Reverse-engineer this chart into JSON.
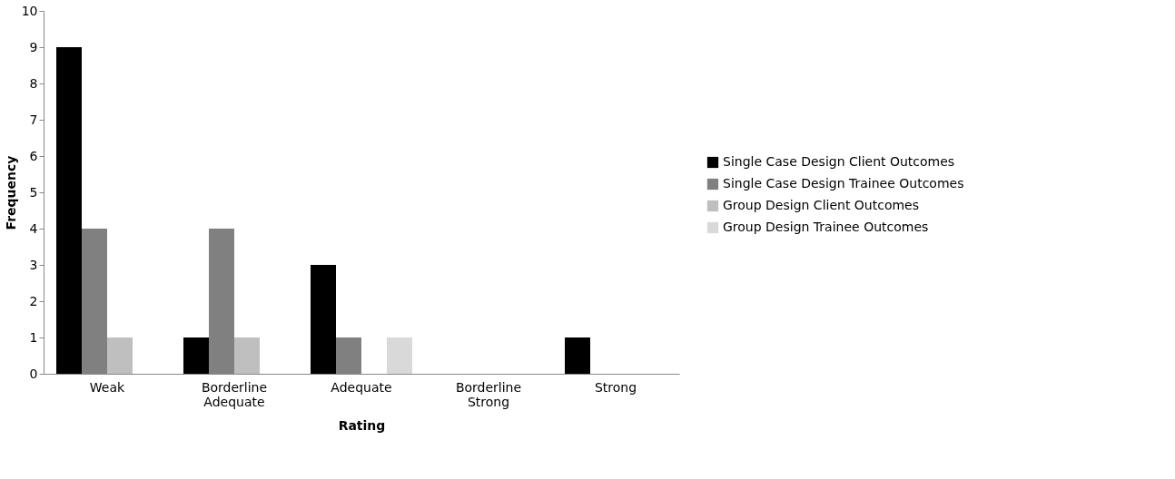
{
  "chart_data": {
    "type": "bar",
    "xlabel": "Rating",
    "ylabel": "Frequency",
    "categories": [
      "Weak",
      "Borderline Adequate",
      "Adequate",
      "Borderline Strong",
      "Strong"
    ],
    "series": [
      {
        "name": "Single Case Design Client Outcomes",
        "color": "#000000",
        "values": [
          9,
          1,
          3,
          0,
          1
        ]
      },
      {
        "name": "Single Case Design Trainee Outcomes",
        "color": "#808080",
        "values": [
          4,
          4,
          1,
          0,
          0
        ]
      },
      {
        "name": "Group Design Client Outcomes",
        "color": "#bfbfbf",
        "values": [
          1,
          1,
          0,
          0,
          0
        ]
      },
      {
        "name": "Group Design Trainee Outcomes",
        "color": "#d9d9d9",
        "values": [
          0,
          0,
          1,
          0,
          0
        ]
      }
    ],
    "ylim": [
      0,
      10
    ],
    "yticks": [
      0,
      1,
      2,
      3,
      4,
      5,
      6,
      7,
      8,
      9,
      10
    ],
    "grid": false,
    "legend": "right"
  }
}
